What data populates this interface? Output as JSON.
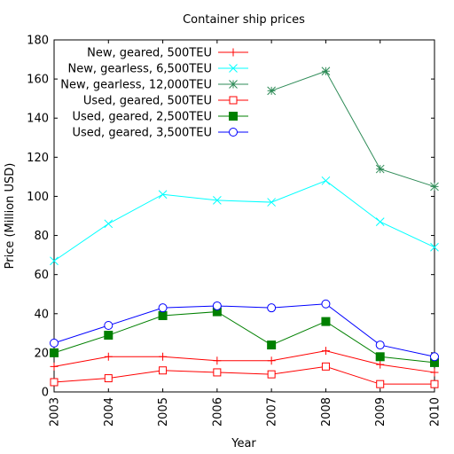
{
  "chart_data": {
    "type": "line",
    "title": "Container ship prices",
    "xlabel": "Year",
    "ylabel": "Price (Million USD)",
    "xlim": [
      2003,
      2010
    ],
    "ylim": [
      0,
      180
    ],
    "x_ticks": [
      "2003",
      "2004",
      "2005",
      "2006",
      "2007",
      "2008",
      "2009",
      "2010"
    ],
    "y_ticks": [
      "0",
      "20",
      "40",
      "60",
      "80",
      "100",
      "120",
      "140",
      "160",
      "180"
    ],
    "grid": false,
    "legend_position": "top-left",
    "series": [
      {
        "name": "New, geared, 500TEU",
        "color": "#ff0000",
        "marker": "plus",
        "x": [
          2003,
          2004,
          2005,
          2006,
          2007,
          2008,
          2009,
          2010
        ],
        "values": [
          13,
          18,
          18,
          16,
          16,
          21,
          14,
          10
        ]
      },
      {
        "name": "New, gearless, 6,500TEU",
        "color": "#00ffff",
        "marker": "x",
        "x": [
          2003,
          2004,
          2005,
          2006,
          2007,
          2008,
          2009,
          2010
        ],
        "values": [
          67,
          86,
          101,
          98,
          97,
          108,
          87,
          74
        ]
      },
      {
        "name": "New, gearless, 12,000TEU",
        "color": "#2e8b57",
        "marker": "star",
        "x": [
          2007,
          2008,
          2009,
          2010
        ],
        "values": [
          154,
          164,
          114,
          105
        ]
      },
      {
        "name": "Used, geared, 500TEU",
        "color": "#ff0000",
        "marker": "square-open",
        "x": [
          2003,
          2004,
          2005,
          2006,
          2007,
          2008,
          2009,
          2010
        ],
        "values": [
          5,
          7,
          11,
          10,
          9,
          13,
          4,
          4
        ]
      },
      {
        "name": "Used, geared, 2,500TEU",
        "color": "#008000",
        "marker": "square-filled",
        "x": [
          2003,
          2004,
          2005,
          2006,
          2007,
          2008,
          2009,
          2010
        ],
        "values": [
          20,
          29,
          39,
          41,
          24,
          36,
          18,
          15
        ]
      },
      {
        "name": "Used, geared, 3,500TEU",
        "color": "#0000ff",
        "marker": "circle-open",
        "x": [
          2003,
          2004,
          2005,
          2006,
          2007,
          2008,
          2009,
          2010
        ],
        "values": [
          25,
          34,
          43,
          44,
          43,
          45,
          24,
          18
        ]
      }
    ]
  }
}
